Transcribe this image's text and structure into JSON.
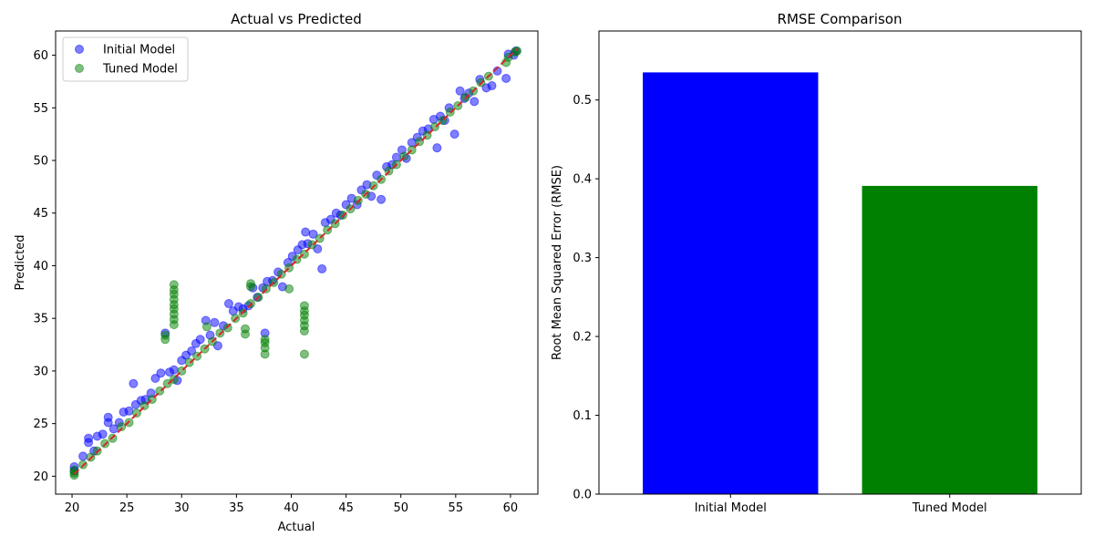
{
  "chart_data": [
    {
      "type": "scatter",
      "title": "Actual vs Predicted",
      "xlabel": "Actual",
      "ylabel": "Predicted",
      "xlim": [
        18.5,
        62.5
      ],
      "ylim": [
        18.3,
        62.3
      ],
      "xticks": [
        20,
        25,
        30,
        35,
        40,
        45,
        50,
        55,
        60
      ],
      "yticks": [
        20,
        25,
        30,
        35,
        40,
        45,
        50,
        55,
        60
      ],
      "legend_position": "top-left",
      "reference_line": {
        "style": "dashed",
        "color": "#d62728",
        "from": [
          20.2,
          20.2
        ],
        "to": [
          60.6,
          60.6
        ]
      },
      "series": [
        {
          "name": "Initial Model",
          "color": "#0000ff",
          "points": [
            [
              20.2,
              20.5
            ],
            [
              20.2,
              20.9
            ],
            [
              21.0,
              21.9
            ],
            [
              21.5,
              23.2
            ],
            [
              21.5,
              23.6
            ],
            [
              22.0,
              22.4
            ],
            [
              22.3,
              23.8
            ],
            [
              22.8,
              24.0
            ],
            [
              23.3,
              25.1
            ],
            [
              23.3,
              25.6
            ],
            [
              23.8,
              24.5
            ],
            [
              24.3,
              25.1
            ],
            [
              24.7,
              26.1
            ],
            [
              25.2,
              26.2
            ],
            [
              25.6,
              28.8
            ],
            [
              25.8,
              26.8
            ],
            [
              26.3,
              27.2
            ],
            [
              26.7,
              27.3
            ],
            [
              27.2,
              27.9
            ],
            [
              27.6,
              29.3
            ],
            [
              28.1,
              29.8
            ],
            [
              28.5,
              33.6
            ],
            [
              28.9,
              29.9
            ],
            [
              29.3,
              30.1
            ],
            [
              29.6,
              29.1
            ],
            [
              30.0,
              31.0
            ],
            [
              30.4,
              31.5
            ],
            [
              30.9,
              31.9
            ],
            [
              31.3,
              32.6
            ],
            [
              31.7,
              33.0
            ],
            [
              32.2,
              34.8
            ],
            [
              32.6,
              33.4
            ],
            [
              33.0,
              34.6
            ],
            [
              33.3,
              32.4
            ],
            [
              33.8,
              34.3
            ],
            [
              34.3,
              36.4
            ],
            [
              34.7,
              35.7
            ],
            [
              35.2,
              36.1
            ],
            [
              35.6,
              35.9
            ],
            [
              36.1,
              36.2
            ],
            [
              36.5,
              37.9
            ],
            [
              36.9,
              37.0
            ],
            [
              37.4,
              37.9
            ],
            [
              37.6,
              33.6
            ],
            [
              37.8,
              38.5
            ],
            [
              38.3,
              38.6
            ],
            [
              38.8,
              39.4
            ],
            [
              39.2,
              38.0
            ],
            [
              39.7,
              40.3
            ],
            [
              40.1,
              40.9
            ],
            [
              40.6,
              41.5
            ],
            [
              41.0,
              42.0
            ],
            [
              41.3,
              43.2
            ],
            [
              41.5,
              42.1
            ],
            [
              42.0,
              43.0
            ],
            [
              42.4,
              41.6
            ],
            [
              42.8,
              39.7
            ],
            [
              43.1,
              44.1
            ],
            [
              43.6,
              44.4
            ],
            [
              44.1,
              45.0
            ],
            [
              44.5,
              44.8
            ],
            [
              45.0,
              45.8
            ],
            [
              45.5,
              46.4
            ],
            [
              46.0,
              45.8
            ],
            [
              46.4,
              47.2
            ],
            [
              46.9,
              47.7
            ],
            [
              47.3,
              46.6
            ],
            [
              47.8,
              48.6
            ],
            [
              48.2,
              46.3
            ],
            [
              48.7,
              49.4
            ],
            [
              49.2,
              49.6
            ],
            [
              49.6,
              50.3
            ],
            [
              50.1,
              51.0
            ],
            [
              50.5,
              50.2
            ],
            [
              51.0,
              51.7
            ],
            [
              51.5,
              52.2
            ],
            [
              52.0,
              52.8
            ],
            [
              52.5,
              53.0
            ],
            [
              53.0,
              53.9
            ],
            [
              53.3,
              51.2
            ],
            [
              53.6,
              54.2
            ],
            [
              54.0,
              53.8
            ],
            [
              54.4,
              55.0
            ],
            [
              54.9,
              52.5
            ],
            [
              55.4,
              56.6
            ],
            [
              55.8,
              55.9
            ],
            [
              56.2,
              56.4
            ],
            [
              56.7,
              55.6
            ],
            [
              57.2,
              57.7
            ],
            [
              57.8,
              56.9
            ],
            [
              58.3,
              57.1
            ],
            [
              58.8,
              58.5
            ],
            [
              59.6,
              57.8
            ],
            [
              59.8,
              60.1
            ],
            [
              60.3,
              60.0
            ],
            [
              60.5,
              60.4
            ]
          ]
        },
        {
          "name": "Tuned Model",
          "color": "#008000",
          "points": [
            [
              20.2,
              20.1
            ],
            [
              20.2,
              20.3
            ],
            [
              20.2,
              20.6
            ],
            [
              21.0,
              21.1
            ],
            [
              21.7,
              21.8
            ],
            [
              22.3,
              22.4
            ],
            [
              23.0,
              23.1
            ],
            [
              23.7,
              23.6
            ],
            [
              24.5,
              24.7
            ],
            [
              25.2,
              25.1
            ],
            [
              25.9,
              26.0
            ],
            [
              26.6,
              26.7
            ],
            [
              27.3,
              27.3
            ],
            [
              28.0,
              28.1
            ],
            [
              28.5,
              33.0
            ],
            [
              28.5,
              33.4
            ],
            [
              28.7,
              28.8
            ],
            [
              29.3,
              29.2
            ],
            [
              29.3,
              34.4
            ],
            [
              29.3,
              34.9
            ],
            [
              29.3,
              35.4
            ],
            [
              29.3,
              35.9
            ],
            [
              29.3,
              36.3
            ],
            [
              29.3,
              36.8
            ],
            [
              29.3,
              37.3
            ],
            [
              29.3,
              37.7
            ],
            [
              29.3,
              38.2
            ],
            [
              30.0,
              30.0
            ],
            [
              30.7,
              30.8
            ],
            [
              31.4,
              31.4
            ],
            [
              32.1,
              32.1
            ],
            [
              32.3,
              34.2
            ],
            [
              32.8,
              32.8
            ],
            [
              33.5,
              33.6
            ],
            [
              34.2,
              34.1
            ],
            [
              34.9,
              35.0
            ],
            [
              35.6,
              35.5
            ],
            [
              35.8,
              33.5
            ],
            [
              35.8,
              34.0
            ],
            [
              36.3,
              36.4
            ],
            [
              36.3,
              38.0
            ],
            [
              36.3,
              38.3
            ],
            [
              37.0,
              37.0
            ],
            [
              37.6,
              31.6
            ],
            [
              37.6,
              32.2
            ],
            [
              37.6,
              32.7
            ],
            [
              37.6,
              33.0
            ],
            [
              37.7,
              37.8
            ],
            [
              38.4,
              38.4
            ],
            [
              39.1,
              39.2
            ],
            [
              39.8,
              37.8
            ],
            [
              39.8,
              39.8
            ],
            [
              40.5,
              40.6
            ],
            [
              41.2,
              31.6
            ],
            [
              41.2,
              33.8
            ],
            [
              41.2,
              34.3
            ],
            [
              41.2,
              34.8
            ],
            [
              41.2,
              35.3
            ],
            [
              41.2,
              35.7
            ],
            [
              41.2,
              36.2
            ],
            [
              41.2,
              41.1
            ],
            [
              41.9,
              42.0
            ],
            [
              42.6,
              42.6
            ],
            [
              43.3,
              43.4
            ],
            [
              44.0,
              44.0
            ],
            [
              44.7,
              44.8
            ],
            [
              45.4,
              45.4
            ],
            [
              46.1,
              46.2
            ],
            [
              46.8,
              46.8
            ],
            [
              47.5,
              47.6
            ],
            [
              48.2,
              48.2
            ],
            [
              48.9,
              49.0
            ],
            [
              49.6,
              49.6
            ],
            [
              50.3,
              50.4
            ],
            [
              51.0,
              51.0
            ],
            [
              51.7,
              51.8
            ],
            [
              52.4,
              52.4
            ],
            [
              53.1,
              53.2
            ],
            [
              53.8,
              53.8
            ],
            [
              54.5,
              54.6
            ],
            [
              55.2,
              55.2
            ],
            [
              55.9,
              56.0
            ],
            [
              56.6,
              56.6
            ],
            [
              57.3,
              57.4
            ],
            [
              58.0,
              58.0
            ],
            [
              59.6,
              59.3
            ],
            [
              59.8,
              59.8
            ],
            [
              60.4,
              60.3
            ],
            [
              60.6,
              60.4
            ]
          ]
        }
      ]
    },
    {
      "type": "bar",
      "title": "RMSE Comparison",
      "xlabel": "",
      "ylabel": "Root Mean Squared Error (RMSE)",
      "ylim": [
        0,
        0.5875
      ],
      "yticks": [
        "0.0",
        "0.1",
        "0.2",
        "0.3",
        "0.4",
        "0.5"
      ],
      "categories": [
        "Initial Model",
        "Tuned Model"
      ],
      "values": [
        0.535,
        0.391
      ],
      "colors": [
        "#0000ff",
        "#008000"
      ]
    }
  ]
}
